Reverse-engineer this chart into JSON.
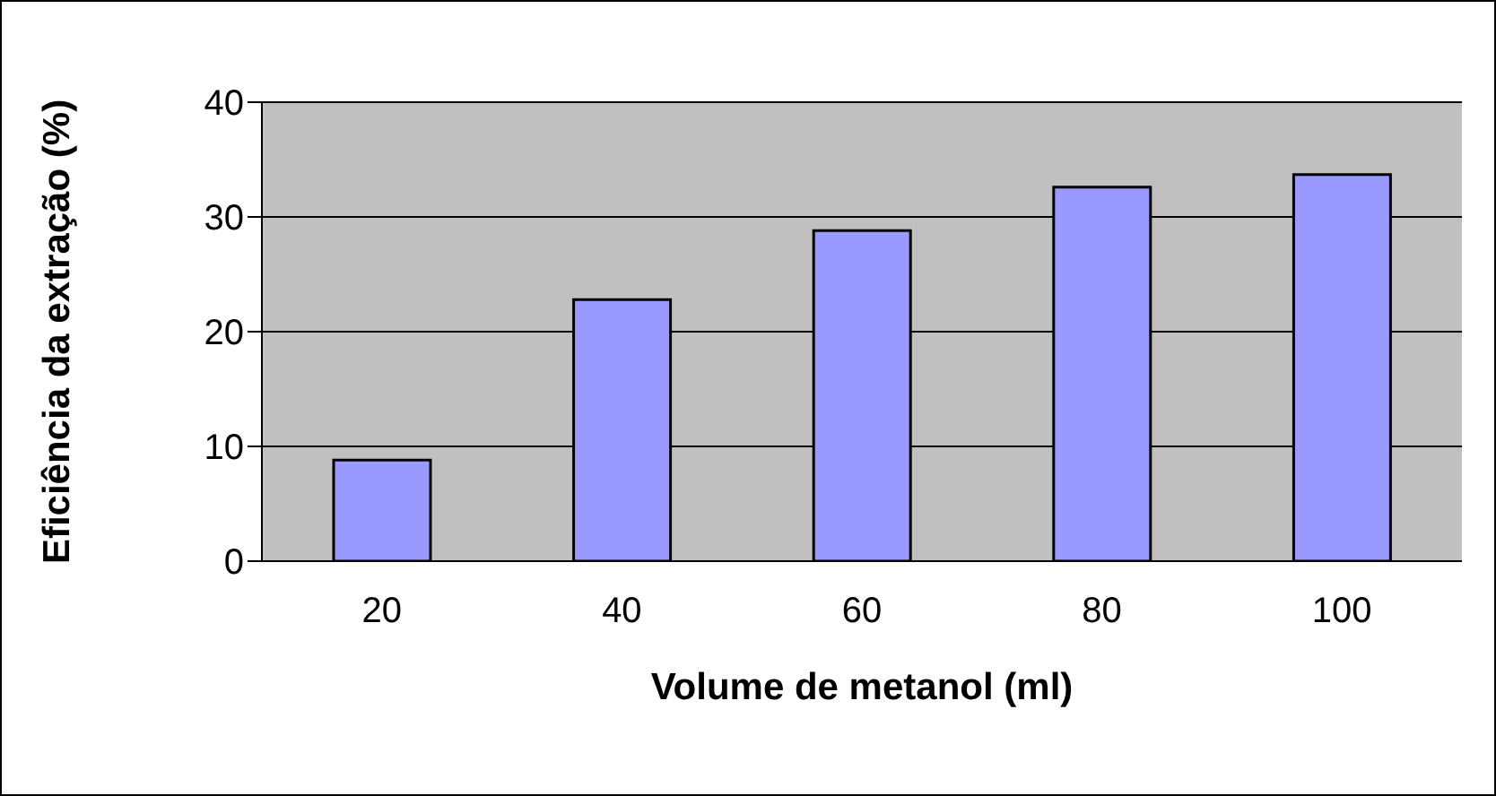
{
  "chart_data": {
    "type": "bar",
    "xlabel": "Volume de metanol (ml)",
    "ylabel": "Eficiência da extração (%)",
    "categories": [
      "20",
      "40",
      "60",
      "80",
      "100"
    ],
    "values": [
      8.8,
      22.8,
      28.8,
      32.6,
      33.7
    ],
    "color": "#9999ff",
    "ylim": [
      0,
      40
    ],
    "yticks": [
      0,
      10,
      20,
      30,
      40
    ],
    "grid": "y",
    "legend": false
  }
}
